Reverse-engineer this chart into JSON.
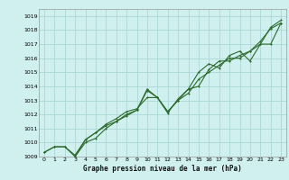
{
  "title": "Graphe pression niveau de la mer (hPa)",
  "background_color": "#cff0ee",
  "grid_color": "#aad8d4",
  "line_color": "#2d6a2d",
  "xlim": [
    -0.5,
    23.5
  ],
  "ylim": [
    1009,
    1019.5
  ],
  "xticks": [
    0,
    1,
    2,
    3,
    4,
    5,
    6,
    7,
    8,
    9,
    10,
    11,
    12,
    13,
    14,
    15,
    16,
    17,
    18,
    19,
    20,
    21,
    22,
    23
  ],
  "yticks": [
    1009,
    1010,
    1011,
    1012,
    1013,
    1014,
    1015,
    1016,
    1017,
    1018,
    1019
  ],
  "series1": {
    "x": [
      0,
      1,
      2,
      3,
      4,
      5,
      6,
      7,
      8,
      9,
      10,
      11,
      12,
      13,
      14,
      15,
      16,
      17,
      18,
      19,
      20,
      21,
      22,
      23
    ],
    "y": [
      1009.3,
      1009.7,
      1009.7,
      1009.1,
      1010.2,
      1010.7,
      1011.2,
      1011.5,
      1012.0,
      1012.3,
      1013.7,
      1013.2,
      1012.2,
      1013.0,
      1013.8,
      1014.0,
      1015.2,
      1015.8,
      1015.8,
      1016.2,
      1016.5,
      1017.2,
      1018.1,
      1018.5
    ]
  },
  "series2": {
    "x": [
      0,
      1,
      2,
      3,
      4,
      5,
      6,
      7,
      8,
      9,
      10,
      11,
      12,
      13,
      14,
      15,
      16,
      17,
      18,
      19,
      20,
      21,
      22,
      23
    ],
    "y": [
      1009.3,
      1009.7,
      1009.7,
      1009.0,
      1010.2,
      1010.7,
      1011.3,
      1011.7,
      1012.2,
      1012.4,
      1013.2,
      1013.2,
      1012.2,
      1013.0,
      1013.5,
      1014.5,
      1015.0,
      1015.5,
      1016.0,
      1016.0,
      1016.5,
      1017.0,
      1018.2,
      1018.7
    ]
  },
  "series3": {
    "x": [
      3,
      4,
      5,
      6,
      7,
      8,
      9,
      10,
      11,
      12,
      13,
      14,
      15,
      16,
      17,
      18,
      19,
      20,
      21,
      22,
      23
    ],
    "y": [
      1009.0,
      1010.0,
      1010.3,
      1011.0,
      1011.5,
      1011.9,
      1012.3,
      1013.8,
      1013.2,
      1012.1,
      1013.1,
      1013.8,
      1015.0,
      1015.6,
      1015.3,
      1016.2,
      1016.5,
      1015.8,
      1017.0,
      1017.0,
      1018.5
    ]
  }
}
